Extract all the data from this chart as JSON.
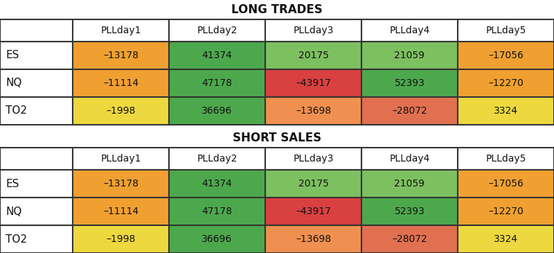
{
  "long_trades_title": "LONG TRADES",
  "short_sales_title": "SHORT SALES",
  "columns": [
    "PLLday1",
    "PLLday2",
    "PLLday3",
    "PLLday4",
    "PLLday5"
  ],
  "rows": [
    "ES",
    "NQ",
    "TO2"
  ],
  "long_values": [
    [
      -13178,
      41374,
      20175,
      21059,
      -17056
    ],
    [
      -11114,
      47178,
      -43917,
      52393,
      -12270
    ],
    [
      -1998,
      36696,
      -13698,
      -28072,
      3324
    ]
  ],
  "short_values": [
    [
      -13178,
      41374,
      20175,
      21059,
      -17056
    ],
    [
      -11114,
      47178,
      -43917,
      52393,
      -12270
    ],
    [
      -1998,
      36696,
      -13698,
      -28072,
      3324
    ]
  ],
  "long_colors": [
    [
      "#F0A030",
      "#4DA84D",
      "#7DC060",
      "#7DC060",
      "#F0A030"
    ],
    [
      "#F0A030",
      "#4DA84D",
      "#D94040",
      "#4DA84D",
      "#F0A030"
    ],
    [
      "#EDD840",
      "#4DA84D",
      "#F09050",
      "#E07050",
      "#EDD840"
    ]
  ],
  "short_colors": [
    [
      "#F0A030",
      "#4DA84D",
      "#7DC060",
      "#7DC060",
      "#F0A030"
    ],
    [
      "#F0A030",
      "#4DA84D",
      "#D94040",
      "#4DA84D",
      "#F0A030"
    ],
    [
      "#EDD840",
      "#4DA84D",
      "#F09050",
      "#E07050",
      "#EDD840"
    ]
  ],
  "bg_color": "#ffffff",
  "border_color": "#333333",
  "text_color": "#111111",
  "title_fontsize": 12,
  "cell_fontsize": 10,
  "header_fontsize": 10,
  "row_label_fontsize": 11
}
